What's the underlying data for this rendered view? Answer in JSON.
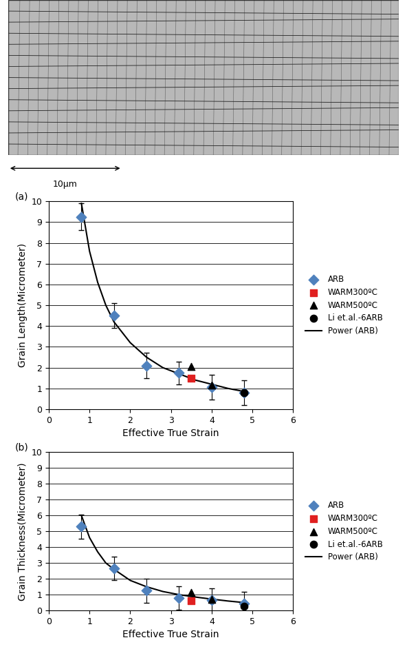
{
  "micrograph": {
    "scale_bar": "10μm"
  },
  "chart_data": [
    {
      "type": "scatter",
      "panel": "(a)",
      "x_label": "Effective True Strain",
      "y_label": "Grain Length(Micrometer)",
      "xlim": [
        0,
        6
      ],
      "xticks": [
        0,
        1,
        2,
        3,
        4,
        5,
        6
      ],
      "ylim": [
        0,
        10
      ],
      "yticks": [
        0,
        1,
        2,
        3,
        4,
        5,
        6,
        7,
        8,
        9,
        10
      ],
      "grid": true,
      "legend": "right",
      "series": [
        {
          "name": "ARB",
          "type": "scatter",
          "color": "#4f81bd",
          "marker": "diamond",
          "x": [
            0.8,
            1.6,
            2.4,
            3.2,
            4.0,
            4.8
          ],
          "values": [
            9.25,
            4.5,
            2.1,
            1.75,
            1.05,
            0.8
          ],
          "errors": [
            0.65,
            0.6,
            0.6,
            0.55,
            0.6,
            0.6
          ]
        },
        {
          "name": "WARM300ºC",
          "type": "scatter",
          "color": "#e02020",
          "marker": "square",
          "x": [
            3.5
          ],
          "values": [
            1.5
          ]
        },
        {
          "name": "WARM500ºC",
          "type": "scatter",
          "color": "#000000",
          "marker": "triangle",
          "x": [
            3.5,
            4.0
          ],
          "values": [
            2.05,
            1.15
          ]
        },
        {
          "name": "Li et.al.-6ARB",
          "type": "scatter",
          "color": "#000000",
          "marker": "circle",
          "x": [
            4.8
          ],
          "values": [
            0.8
          ]
        },
        {
          "name": "Power (ARB)",
          "type": "line",
          "color": "#000000",
          "line_style": "solid",
          "x": [
            0.8,
            1.0,
            1.2,
            1.4,
            1.6,
            2.0,
            2.4,
            2.8,
            3.2,
            3.6,
            4.0,
            4.4,
            4.8
          ],
          "values": [
            9.9,
            7.6,
            6.1,
            5.0,
            4.2,
            3.2,
            2.5,
            2.0,
            1.7,
            1.4,
            1.2,
            1.0,
            0.85
          ]
        }
      ]
    },
    {
      "type": "scatter",
      "panel": "(b)",
      "x_label": "Effective True Strain",
      "y_label": "Grain Thickness(Micrometer)",
      "xlim": [
        0,
        6
      ],
      "xticks": [
        0,
        1,
        2,
        3,
        4,
        5,
        6
      ],
      "ylim": [
        0,
        10
      ],
      "yticks": [
        0,
        1,
        2,
        3,
        4,
        5,
        6,
        7,
        8,
        9,
        10
      ],
      "grid": true,
      "legend": "right",
      "series": [
        {
          "name": "ARB",
          "type": "scatter",
          "color": "#4f81bd",
          "marker": "diamond",
          "x": [
            0.8,
            1.6,
            2.4,
            3.2,
            4.0,
            4.8
          ],
          "values": [
            5.3,
            2.65,
            1.25,
            0.8,
            0.65,
            0.45
          ],
          "errors": [
            0.75,
            0.75,
            0.75,
            0.75,
            0.75,
            0.75
          ]
        },
        {
          "name": "WARM300ºC",
          "type": "scatter",
          "color": "#e02020",
          "marker": "square",
          "x": [
            3.5
          ],
          "values": [
            0.6
          ]
        },
        {
          "name": "WARM500ºC",
          "type": "scatter",
          "color": "#000000",
          "marker": "triangle",
          "x": [
            3.5,
            4.0
          ],
          "values": [
            1.15,
            0.7
          ]
        },
        {
          "name": "Li et.al.-6ARB",
          "type": "scatter",
          "color": "#000000",
          "marker": "circle",
          "x": [
            4.8
          ],
          "values": [
            0.25
          ]
        },
        {
          "name": "Power (ARB)",
          "type": "line",
          "color": "#000000",
          "line_style": "solid",
          "x": [
            0.8,
            1.0,
            1.2,
            1.4,
            1.6,
            2.0,
            2.4,
            2.8,
            3.2,
            3.6,
            4.0,
            4.4,
            4.8
          ],
          "values": [
            6.0,
            4.6,
            3.7,
            3.0,
            2.6,
            1.9,
            1.5,
            1.2,
            1.0,
            0.85,
            0.72,
            0.6,
            0.5
          ]
        }
      ]
    }
  ]
}
